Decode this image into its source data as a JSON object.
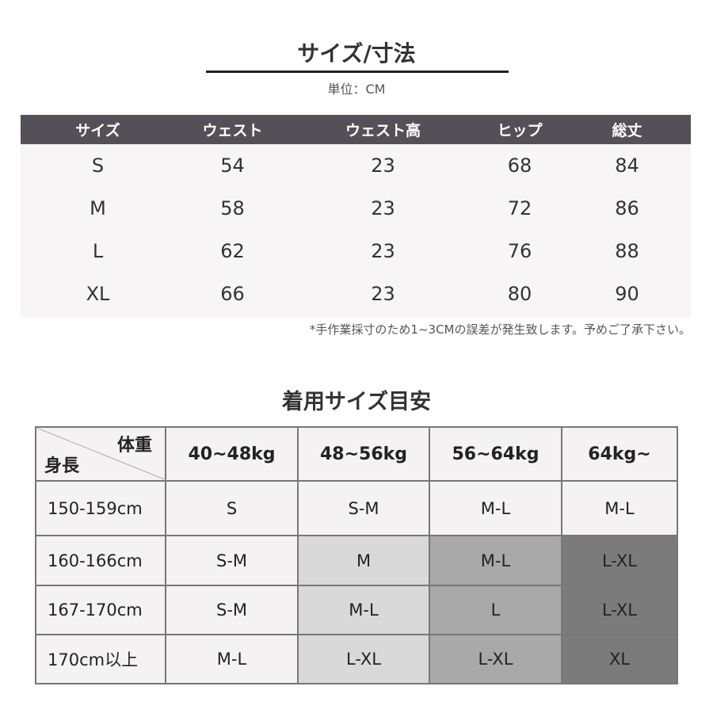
{
  "size_section": {
    "title": "サイズ/寸法",
    "unit": "単位：CM",
    "headers": [
      "サイズ",
      "ウェスト",
      "ウェスト高",
      "ヒップ",
      "総丈"
    ],
    "rows": [
      [
        "S",
        "54",
        "23",
        "68",
        "84"
      ],
      [
        "M",
        "58",
        "23",
        "72",
        "86"
      ],
      [
        "L",
        "62",
        "23",
        "76",
        "88"
      ],
      [
        "XL",
        "66",
        "23",
        "80",
        "90"
      ]
    ],
    "note": "*手作業採寸のため1~3CMの誤差が発生致します。予めご了承下さい。",
    "header_color": "#555058"
  },
  "fit_section": {
    "title": "着用サイズ目安",
    "corner_weight": "体重",
    "corner_height": "身長",
    "weights": [
      "40~48kg",
      "48~56kg",
      "56~64kg",
      "64kg~"
    ],
    "rows": [
      {
        "height": "150-159cm",
        "sizes": [
          "S",
          "S-M",
          "M-L",
          "M-L"
        ],
        "shade": [
          0,
          0,
          0,
          0
        ]
      },
      {
        "height": "160-166cm",
        "sizes": [
          "S-M",
          "M",
          "M-L",
          "L-XL"
        ],
        "shade": [
          0,
          1,
          2,
          3
        ]
      },
      {
        "height": "167-170cm",
        "sizes": [
          "S-M",
          "M-L",
          "L",
          "L-XL"
        ],
        "shade": [
          0,
          1,
          2,
          3
        ]
      },
      {
        "height": "170cm以上",
        "sizes": [
          "M-L",
          "L-XL",
          "L-XL",
          "XL"
        ],
        "shade": [
          0,
          1,
          2,
          3
        ]
      }
    ],
    "shade_colors": [
      "#f4f2f3",
      "#d9d9d9",
      "#a9a9a9",
      "#7b7b7b"
    ]
  }
}
